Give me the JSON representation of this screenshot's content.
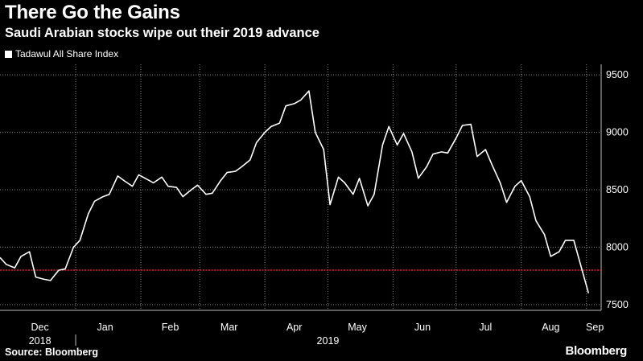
{
  "header": {
    "title": "There Go the Gains",
    "subtitle": "Saudi Arabian stocks wipe out their 2019 advance"
  },
  "footer": {
    "source": "Source: Bloomberg",
    "brand": "Bloomberg"
  },
  "colors": {
    "line": "#ffffff",
    "reference": "#e0213a",
    "grid": "#8a8a8a"
  },
  "chart_data": {
    "type": "line",
    "title": "There Go the Gains",
    "subtitle": "Saudi Arabian stocks wipe out their 2019 advance",
    "series": [
      {
        "name": "Tadawul All Share Index",
        "x": [
          "2018-11-26",
          "2018-11-29",
          "2018-12-03",
          "2018-12-06",
          "2018-12-10",
          "2018-12-13",
          "2018-12-17",
          "2018-12-20",
          "2018-12-24",
          "2018-12-27",
          "2018-12-31",
          "2019-01-03",
          "2019-01-07",
          "2019-01-10",
          "2019-01-14",
          "2019-01-17",
          "2019-01-21",
          "2019-01-24",
          "2019-01-28",
          "2019-01-31",
          "2019-02-04",
          "2019-02-07",
          "2019-02-11",
          "2019-02-14",
          "2019-02-18",
          "2019-02-21",
          "2019-02-25",
          "2019-02-28",
          "2019-03-04",
          "2019-03-07",
          "2019-03-11",
          "2019-03-14",
          "2019-03-18",
          "2019-03-21",
          "2019-03-25",
          "2019-03-28",
          "2019-04-01",
          "2019-04-04",
          "2019-04-08",
          "2019-04-11",
          "2019-04-15",
          "2019-04-18",
          "2019-04-22",
          "2019-04-25",
          "2019-04-29",
          "2019-05-02",
          "2019-05-06",
          "2019-05-09",
          "2019-05-13",
          "2019-05-16",
          "2019-05-20",
          "2019-05-23",
          "2019-05-27",
          "2019-05-30",
          "2019-06-03",
          "2019-06-06",
          "2019-06-10",
          "2019-06-13",
          "2019-06-17",
          "2019-06-20",
          "2019-06-24",
          "2019-06-27",
          "2019-07-01",
          "2019-07-04",
          "2019-07-08",
          "2019-07-11",
          "2019-07-15",
          "2019-07-18",
          "2019-07-22",
          "2019-07-25",
          "2019-07-29",
          "2019-08-01",
          "2019-08-05",
          "2019-08-08",
          "2019-08-12",
          "2019-08-15",
          "2019-08-19",
          "2019-08-22",
          "2019-08-26",
          "2019-08-29",
          "2019-09-02"
        ],
        "values": [
          7910,
          7850,
          7820,
          7920,
          7960,
          7740,
          7720,
          7710,
          7800,
          7810,
          8000,
          8060,
          8290,
          8400,
          8440,
          8460,
          8620,
          8580,
          8530,
          8630,
          8590,
          8560,
          8610,
          8530,
          8520,
          8440,
          8500,
          8540,
          8460,
          8470,
          8580,
          8650,
          8660,
          8700,
          8760,
          8910,
          9000,
          9050,
          9080,
          9230,
          9250,
          9280,
          9360,
          9000,
          8850,
          8370,
          8610,
          8560,
          8460,
          8600,
          8360,
          8460,
          8890,
          9050,
          8890,
          8990,
          8830,
          8600,
          8700,
          8810,
          8830,
          8820,
          8950,
          9060,
          9070,
          8790,
          8850,
          8720,
          8560,
          8390,
          8530,
          8580,
          8440,
          8230,
          8110,
          7920,
          7960,
          8060,
          8060,
          7860,
          7600
        ]
      }
    ],
    "reference_value": 7800,
    "xticks": [
      {
        "date": "2018-12-15",
        "label": "Dec"
      },
      {
        "date": "2019-01-15",
        "label": "Jan"
      },
      {
        "date": "2019-02-15",
        "label": "Feb"
      },
      {
        "date": "2019-03-15",
        "label": "Mar"
      },
      {
        "date": "2019-04-15",
        "label": "Apr"
      },
      {
        "date": "2019-05-15",
        "label": "May"
      },
      {
        "date": "2019-06-15",
        "label": "Jun"
      },
      {
        "date": "2019-07-15",
        "label": "Jul"
      },
      {
        "date": "2019-08-15",
        "label": "Aug"
      },
      {
        "date": "2019-09-05",
        "label": "Sep"
      }
    ],
    "xrange": [
      "2018-11-26",
      "2019-09-08"
    ],
    "year_labels": [
      {
        "date": "2018-12-15",
        "label": "2018"
      },
      {
        "date": "2019-05-01",
        "label": "2019"
      }
    ],
    "ylim": [
      7450,
      9550
    ],
    "yticks": [
      7500,
      8000,
      8500,
      9000,
      9500
    ],
    "yaxis_position": "right",
    "grid": true,
    "legend_position": "top-left"
  }
}
